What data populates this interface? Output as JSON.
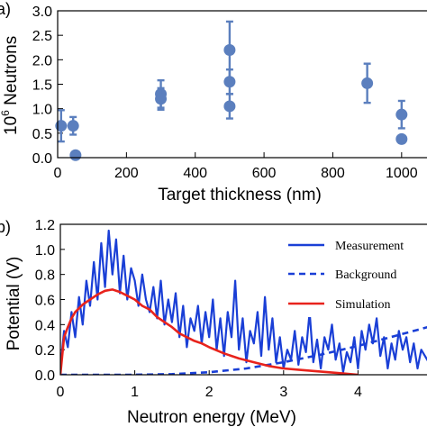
{
  "chart_data": [
    {
      "type": "scatter",
      "panel_label": "a)",
      "xlabel": "Target thickness (nm)",
      "ylabel": "10",
      "ylabel_exp": "6",
      "ylabel_rest": "Neutrons",
      "xlim": [
        0,
        1100
      ],
      "ylim": [
        0,
        3.0
      ],
      "xticks": [
        0,
        200,
        400,
        600,
        800,
        1000
      ],
      "yticks": [
        0.0,
        0.5,
        1.0,
        1.5,
        2.0,
        2.5,
        3.0
      ],
      "xtick_labels": [
        "0",
        "200",
        "400",
        "600",
        "800",
        "1000"
      ],
      "ytick_labels": [
        "0.0",
        "0.5",
        "1.0",
        "1.5",
        "2.0",
        "2.5",
        "3.0"
      ],
      "marker_color": "#5b7fbe",
      "points": [
        {
          "x": 10,
          "y": 0.65,
          "err": 0.32
        },
        {
          "x": 45,
          "y": 0.65,
          "err": 0.18
        },
        {
          "x": 52,
          "y": 0.05,
          "err": 0.0
        },
        {
          "x": 300,
          "y": 1.3,
          "err": 0.28
        },
        {
          "x": 300,
          "y": 1.2,
          "err": 0.22
        },
        {
          "x": 500,
          "y": 2.2,
          "err": 0.58
        },
        {
          "x": 500,
          "y": 1.55,
          "err": 0.25
        },
        {
          "x": 500,
          "y": 1.05,
          "err": 0.25
        },
        {
          "x": 900,
          "y": 1.52,
          "err": 0.4
        },
        {
          "x": 1000,
          "y": 0.88,
          "err": 0.28
        },
        {
          "x": 1000,
          "y": 0.38,
          "err": 0.0
        }
      ]
    },
    {
      "type": "line",
      "panel_label": "b)",
      "xlabel": "Neutron energy (MeV)",
      "ylabel": "Potential (V)",
      "xlim": [
        0,
        5
      ],
      "ylim": [
        0,
        1.2
      ],
      "xticks": [
        0,
        1,
        2,
        3,
        4
      ],
      "yticks": [
        0.0,
        0.2,
        0.4,
        0.6,
        0.8,
        1.0,
        1.2
      ],
      "xtick_labels": [
        "0",
        "1",
        "2",
        "3",
        "4"
      ],
      "ytick_labels": [
        "0.0",
        "0.2",
        "0.4",
        "0.6",
        "0.8",
        "1.0",
        "1.2"
      ],
      "legend_position": "top-right",
      "series": [
        {
          "name": "Measurement",
          "color": "#1a3fd6",
          "style": "solid",
          "x": [
            0.0,
            0.05,
            0.1,
            0.15,
            0.2,
            0.25,
            0.3,
            0.35,
            0.4,
            0.45,
            0.5,
            0.55,
            0.6,
            0.65,
            0.7,
            0.75,
            0.8,
            0.85,
            0.9,
            0.95,
            1.0,
            1.05,
            1.1,
            1.15,
            1.2,
            1.25,
            1.3,
            1.35,
            1.4,
            1.45,
            1.5,
            1.55,
            1.6,
            1.65,
            1.7,
            1.75,
            1.8,
            1.85,
            1.9,
            1.95,
            2.0,
            2.05,
            2.1,
            2.15,
            2.2,
            2.25,
            2.3,
            2.35,
            2.4,
            2.45,
            2.5,
            2.55,
            2.6,
            2.65,
            2.7,
            2.75,
            2.8,
            2.85,
            2.9,
            2.95,
            3.0,
            3.05,
            3.1,
            3.15,
            3.2,
            3.25,
            3.3,
            3.35,
            3.4,
            3.45,
            3.5,
            3.55,
            3.6,
            3.65,
            3.7,
            3.75,
            3.8,
            3.85,
            3.9,
            3.95,
            4.0,
            4.05,
            4.1,
            4.15,
            4.2,
            4.25,
            4.3,
            4.35,
            4.4,
            4.45,
            4.5,
            4.55,
            4.6,
            4.65,
            4.7,
            4.75,
            4.8,
            4.85,
            4.9,
            4.95,
            5.0
          ],
          "y": [
            0.05,
            0.35,
            0.22,
            0.5,
            0.3,
            0.62,
            0.4,
            0.75,
            0.55,
            0.9,
            0.6,
            1.05,
            0.7,
            1.15,
            0.8,
            1.08,
            0.65,
            0.95,
            0.6,
            0.85,
            0.75,
            0.55,
            0.8,
            0.6,
            0.5,
            0.7,
            0.45,
            0.75,
            0.4,
            0.6,
            0.42,
            0.65,
            0.3,
            0.55,
            0.22,
            0.45,
            0.35,
            0.55,
            0.25,
            0.5,
            0.3,
            0.6,
            0.2,
            0.45,
            0.15,
            0.5,
            0.3,
            0.75,
            0.2,
            0.45,
            0.1,
            0.35,
            0.25,
            0.5,
            0.15,
            0.62,
            0.2,
            0.45,
            0.1,
            0.3,
            0.05,
            0.2,
            0.12,
            0.35,
            0.08,
            0.3,
            0.18,
            0.5,
            0.1,
            0.28,
            0.05,
            0.3,
            0.2,
            0.4,
            0.12,
            0.25,
            0.02,
            0.18,
            0.1,
            0.3,
            0.05,
            0.35,
            0.2,
            0.4,
            0.25,
            0.45,
            0.15,
            0.3,
            0.05,
            0.25,
            0.12,
            0.35,
            0.2,
            0.3,
            0.1,
            0.25,
            0.05,
            0.2,
            0.15,
            0.1,
            0.05
          ]
        },
        {
          "name": "Background",
          "color": "#1a3fd6",
          "style": "dashed",
          "x": [
            0.0,
            0.5,
            1.0,
            1.5,
            2.0,
            2.5,
            3.0,
            3.5,
            4.0,
            4.5,
            5.0
          ],
          "y": [
            0.0,
            0.0,
            0.0,
            0.005,
            0.02,
            0.05,
            0.1,
            0.16,
            0.23,
            0.31,
            0.39
          ]
        },
        {
          "name": "Simulation",
          "color": "#e8231c",
          "style": "solid",
          "x": [
            0.0,
            0.05,
            0.1,
            0.15,
            0.2,
            0.3,
            0.4,
            0.5,
            0.6,
            0.7,
            0.8,
            0.9,
            1.0,
            1.1,
            1.2,
            1.3,
            1.4,
            1.5,
            1.6,
            1.7,
            1.8,
            1.9,
            2.0,
            2.2,
            2.4,
            2.6,
            2.8,
            3.0,
            3.2,
            3.4,
            3.6,
            3.8,
            4.0
          ],
          "y": [
            0.0,
            0.3,
            0.38,
            0.45,
            0.5,
            0.56,
            0.6,
            0.64,
            0.67,
            0.68,
            0.66,
            0.63,
            0.6,
            0.55,
            0.52,
            0.46,
            0.42,
            0.38,
            0.33,
            0.3,
            0.27,
            0.25,
            0.22,
            0.17,
            0.13,
            0.1,
            0.07,
            0.05,
            0.04,
            0.03,
            0.02,
            0.01,
            0.0
          ]
        }
      ]
    }
  ]
}
